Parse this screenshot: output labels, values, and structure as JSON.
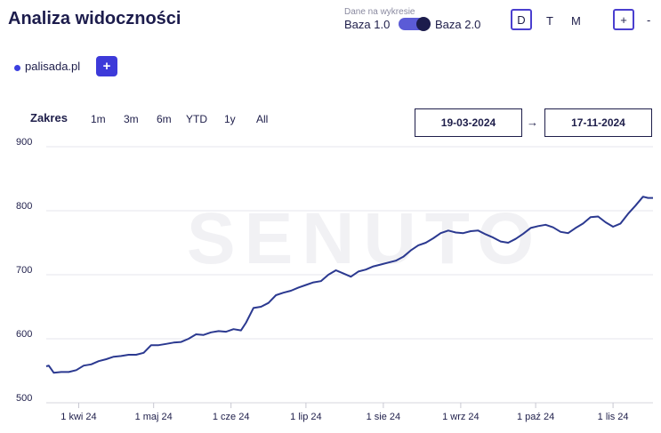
{
  "header": {
    "title": "Analiza widoczności",
    "data_source_label": "Dane na wykresie",
    "base_left": "Baza 1.0",
    "base_right": "Baza 2.0",
    "base_toggle_state": "Baza 2.0",
    "granularity": {
      "d": "D",
      "t": "T",
      "m": "M",
      "selected": "D"
    },
    "zoom_in": "+",
    "zoom_out": "-"
  },
  "legend": {
    "domain": "palisada.pl",
    "domain_color": "#3b3fe0",
    "add_label": "+"
  },
  "range": {
    "label": "Zakres",
    "buttons": [
      "1m",
      "3m",
      "6m",
      "YTD",
      "1y",
      "All"
    ],
    "date_from": "19-03-2024",
    "arrow": "→",
    "date_to": "17-11-2024"
  },
  "watermark": "SENUTO",
  "chart_data": {
    "type": "line",
    "ylim": [
      500,
      900
    ],
    "y_ticks": [
      "900",
      "800",
      "700",
      "600",
      "500"
    ],
    "x_ticks": [
      "1 kwi 24",
      "1 maj 24",
      "1 cze 24",
      "1 lip 24",
      "1 sie 24",
      "1 wrz 24",
      "1 paź 24",
      "1 lis 24"
    ],
    "x_range": [
      "2024-03-19",
      "2024-11-17"
    ],
    "series": [
      {
        "color": "#2b3990",
        "points": [
          [
            "2024-03-19",
            557
          ],
          [
            "2024-03-20",
            558
          ],
          [
            "2024-03-22",
            547
          ],
          [
            "2024-03-25",
            548
          ],
          [
            "2024-03-28",
            548
          ],
          [
            "2024-03-31",
            551
          ],
          [
            "2024-04-03",
            558
          ],
          [
            "2024-04-06",
            560
          ],
          [
            "2024-04-09",
            565
          ],
          [
            "2024-04-12",
            568
          ],
          [
            "2024-04-15",
            572
          ],
          [
            "2024-04-18",
            573
          ],
          [
            "2024-04-21",
            575
          ],
          [
            "2024-04-24",
            575
          ],
          [
            "2024-04-27",
            578
          ],
          [
            "2024-04-30",
            590
          ],
          [
            "2024-05-03",
            590
          ],
          [
            "2024-05-06",
            592
          ],
          [
            "2024-05-09",
            594
          ],
          [
            "2024-05-12",
            595
          ],
          [
            "2024-05-15",
            600
          ],
          [
            "2024-05-18",
            607
          ],
          [
            "2024-05-21",
            606
          ],
          [
            "2024-05-24",
            610
          ],
          [
            "2024-05-27",
            612
          ],
          [
            "2024-05-30",
            611
          ],
          [
            "2024-06-02",
            615
          ],
          [
            "2024-06-05",
            613
          ],
          [
            "2024-06-07",
            625
          ],
          [
            "2024-06-10",
            648
          ],
          [
            "2024-06-13",
            650
          ],
          [
            "2024-06-16",
            656
          ],
          [
            "2024-06-19",
            668
          ],
          [
            "2024-06-22",
            672
          ],
          [
            "2024-06-25",
            675
          ],
          [
            "2024-06-28",
            680
          ],
          [
            "2024-07-01",
            684
          ],
          [
            "2024-07-04",
            688
          ],
          [
            "2024-07-07",
            690
          ],
          [
            "2024-07-10",
            700
          ],
          [
            "2024-07-13",
            707
          ],
          [
            "2024-07-16",
            702
          ],
          [
            "2024-07-19",
            697
          ],
          [
            "2024-07-22",
            705
          ],
          [
            "2024-07-25",
            708
          ],
          [
            "2024-07-28",
            713
          ],
          [
            "2024-07-31",
            716
          ],
          [
            "2024-08-03",
            719
          ],
          [
            "2024-08-06",
            722
          ],
          [
            "2024-08-09",
            728
          ],
          [
            "2024-08-12",
            738
          ],
          [
            "2024-08-15",
            746
          ],
          [
            "2024-08-18",
            750
          ],
          [
            "2024-08-21",
            757
          ],
          [
            "2024-08-24",
            765
          ],
          [
            "2024-08-27",
            769
          ],
          [
            "2024-08-30",
            766
          ],
          [
            "2024-09-02",
            765
          ],
          [
            "2024-09-05",
            768
          ],
          [
            "2024-09-08",
            769
          ],
          [
            "2024-09-11",
            763
          ],
          [
            "2024-09-14",
            758
          ],
          [
            "2024-09-17",
            752
          ],
          [
            "2024-09-20",
            750
          ],
          [
            "2024-09-23",
            756
          ],
          [
            "2024-09-26",
            764
          ],
          [
            "2024-09-29",
            773
          ],
          [
            "2024-10-02",
            776
          ],
          [
            "2024-10-05",
            778
          ],
          [
            "2024-10-08",
            774
          ],
          [
            "2024-10-11",
            767
          ],
          [
            "2024-10-14",
            765
          ],
          [
            "2024-10-17",
            773
          ],
          [
            "2024-10-20",
            780
          ],
          [
            "2024-10-23",
            790
          ],
          [
            "2024-10-26",
            791
          ],
          [
            "2024-10-29",
            782
          ],
          [
            "2024-11-01",
            775
          ],
          [
            "2024-11-04",
            780
          ],
          [
            "2024-11-07",
            795
          ],
          [
            "2024-11-10",
            808
          ],
          [
            "2024-11-13",
            822
          ],
          [
            "2024-11-15",
            820
          ],
          [
            "2024-11-17",
            820
          ]
        ]
      }
    ],
    "grid": true
  }
}
